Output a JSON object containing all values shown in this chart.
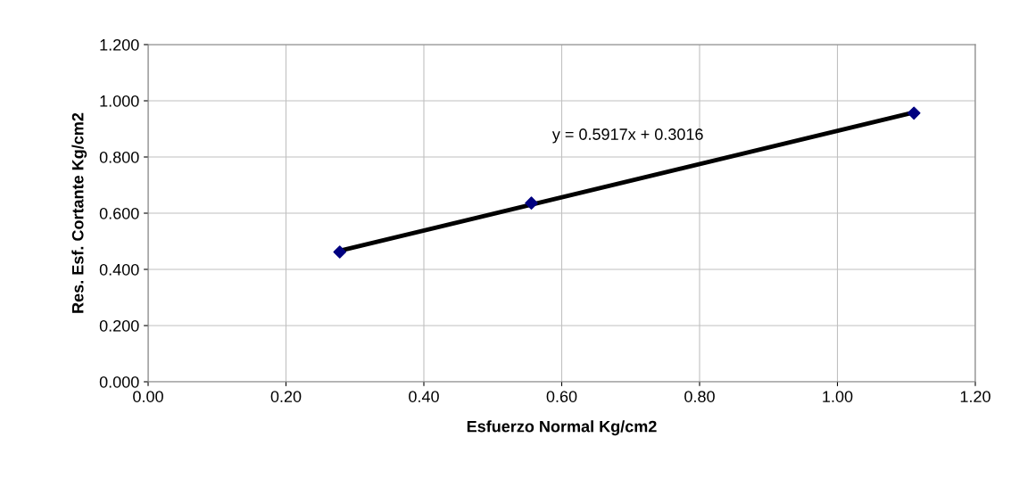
{
  "chart_data": {
    "type": "scatter",
    "xlabel": "Esfuerzo Normal Kg/cm2",
    "ylabel": "Res. Esf. Cortante Kg/cm2",
    "series": [
      {
        "type": "line",
        "color": "#000000",
        "x": [
          0.278,
          1.111
        ],
        "values": [
          0.466,
          0.959
        ],
        "marker": "none",
        "line_style": "solid"
      },
      {
        "color": "#000080",
        "x": [
          0.278,
          0.556,
          1.111
        ],
        "values": [
          0.462,
          0.636,
          0.956
        ],
        "marker": "diamond"
      }
    ],
    "annotations": [
      "y = 0.5917x + 0.3016"
    ],
    "xlim": [
      0,
      1.2
    ],
    "xticks": [
      {
        "value": 0,
        "label": "0.00"
      },
      {
        "value": 0.2,
        "label": "0.20"
      },
      {
        "value": 0.4,
        "label": "0.40"
      },
      {
        "value": 0.6,
        "label": "0.60"
      },
      {
        "value": 0.8,
        "label": "0.80"
      },
      {
        "value": 1.0,
        "label": "1.00"
      },
      {
        "value": 1.2,
        "label": "1.20"
      }
    ],
    "ylim": [
      0,
      1.2
    ],
    "yticks": [
      {
        "value": 0,
        "label": "0.000"
      },
      {
        "value": 0.2,
        "label": "0.200"
      },
      {
        "value": 0.4,
        "label": "0.400"
      },
      {
        "value": 0.6,
        "label": "0.600"
      },
      {
        "value": 0.8,
        "label": "0.800"
      },
      {
        "value": 1.0,
        "label": "1.000"
      },
      {
        "value": 1.2,
        "label": "1.200"
      }
    ],
    "grid": true
  }
}
